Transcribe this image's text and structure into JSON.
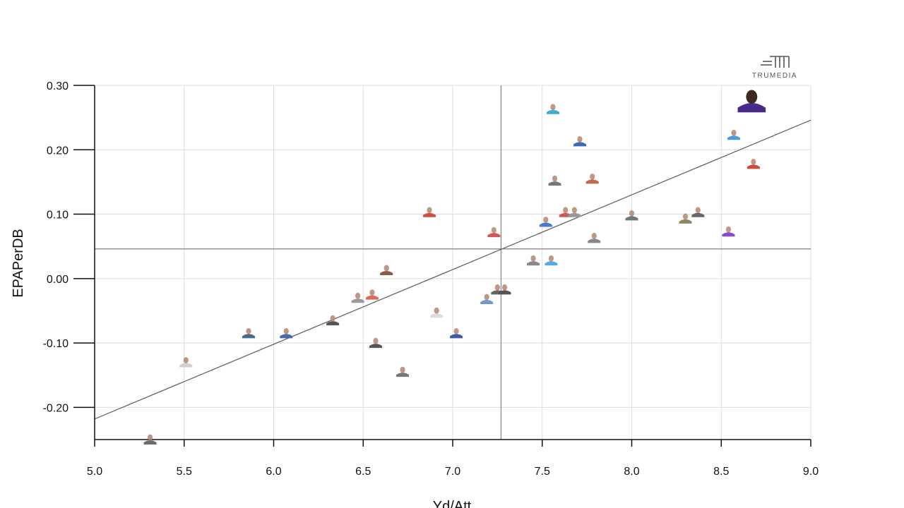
{
  "logo": {
    "text": "TRUMEDIA"
  },
  "chart_data": {
    "type": "scatter",
    "xlabel": "Yd/Att",
    "ylabel": "EPAPerDB",
    "xlim": [
      5.0,
      9.0
    ],
    "ylim": [
      -0.25,
      0.3
    ],
    "x_ticks": [
      5.0,
      5.5,
      6.0,
      6.5,
      7.0,
      7.5,
      8.0,
      8.5,
      9.0
    ],
    "x_tick_labels": [
      "5.0",
      "5.5",
      "6.0",
      "6.5",
      "7.0",
      "7.5",
      "8.0",
      "8.5",
      "9.0"
    ],
    "y_ticks": [
      0.3,
      0.2,
      0.1,
      0.0,
      -0.1,
      -0.2
    ],
    "y_tick_labels": [
      "0.30",
      "0.20",
      "0.10",
      "0.00",
      "-0.10",
      "-0.20"
    ],
    "grid": true,
    "average_lines": {
      "x": 7.27,
      "y": 0.046
    },
    "trend_line": {
      "x": [
        5.0,
        9.0
      ],
      "y": [
        -0.218,
        0.246
      ]
    },
    "highlight_color": "#4a2a8a",
    "points": [
      {
        "x": 5.31,
        "y": -0.25,
        "color": "#6b6b6b"
      },
      {
        "x": 5.51,
        "y": -0.13,
        "color": "#d0d0d0"
      },
      {
        "x": 5.86,
        "y": -0.085,
        "color": "#4a6a8a"
      },
      {
        "x": 6.07,
        "y": -0.085,
        "color": "#4a6aaa"
      },
      {
        "x": 6.33,
        "y": -0.065,
        "color": "#555555"
      },
      {
        "x": 6.47,
        "y": -0.03,
        "color": "#9a9a9a"
      },
      {
        "x": 6.55,
        "y": -0.025,
        "color": "#e06a5a"
      },
      {
        "x": 6.57,
        "y": -0.1,
        "color": "#555555"
      },
      {
        "x": 6.63,
        "y": 0.013,
        "color": "#8a5a4a"
      },
      {
        "x": 6.72,
        "y": -0.145,
        "color": "#777777"
      },
      {
        "x": 6.87,
        "y": 0.103,
        "color": "#d05040"
      },
      {
        "x": 6.91,
        "y": -0.053,
        "color": "#dddddd"
      },
      {
        "x": 7.02,
        "y": -0.085,
        "color": "#3a5aaa"
      },
      {
        "x": 7.19,
        "y": -0.032,
        "color": "#6a9ad0"
      },
      {
        "x": 7.23,
        "y": 0.072,
        "color": "#d05a5a"
      },
      {
        "x": 7.25,
        "y": -0.017,
        "color": "#666666"
      },
      {
        "x": 7.29,
        "y": -0.017,
        "color": "#555555"
      },
      {
        "x": 7.45,
        "y": 0.028,
        "color": "#888888"
      },
      {
        "x": 7.52,
        "y": 0.088,
        "color": "#4a7ad0"
      },
      {
        "x": 7.55,
        "y": 0.028,
        "color": "#5aaae0"
      },
      {
        "x": 7.56,
        "y": 0.263,
        "color": "#3ab0d0"
      },
      {
        "x": 7.57,
        "y": 0.152,
        "color": "#777777"
      },
      {
        "x": 7.63,
        "y": 0.103,
        "color": "#d05a5a"
      },
      {
        "x": 7.68,
        "y": 0.103,
        "color": "#999999"
      },
      {
        "x": 7.71,
        "y": 0.213,
        "color": "#3a6ab0"
      },
      {
        "x": 7.78,
        "y": 0.155,
        "color": "#c06a4a"
      },
      {
        "x": 7.79,
        "y": 0.063,
        "color": "#888888"
      },
      {
        "x": 8.0,
        "y": 0.098,
        "color": "#6a7a7a"
      },
      {
        "x": 8.3,
        "y": 0.093,
        "color": "#888866"
      },
      {
        "x": 8.37,
        "y": 0.103,
        "color": "#666666"
      },
      {
        "x": 8.54,
        "y": 0.073,
        "color": "#8a4ad0"
      },
      {
        "x": 8.57,
        "y": 0.223,
        "color": "#4a9ae0"
      },
      {
        "x": 8.68,
        "y": 0.178,
        "color": "#d04a3a"
      },
      {
        "x": 8.67,
        "y": 0.275,
        "color": "#4a2a8a",
        "highlight": true
      }
    ]
  }
}
